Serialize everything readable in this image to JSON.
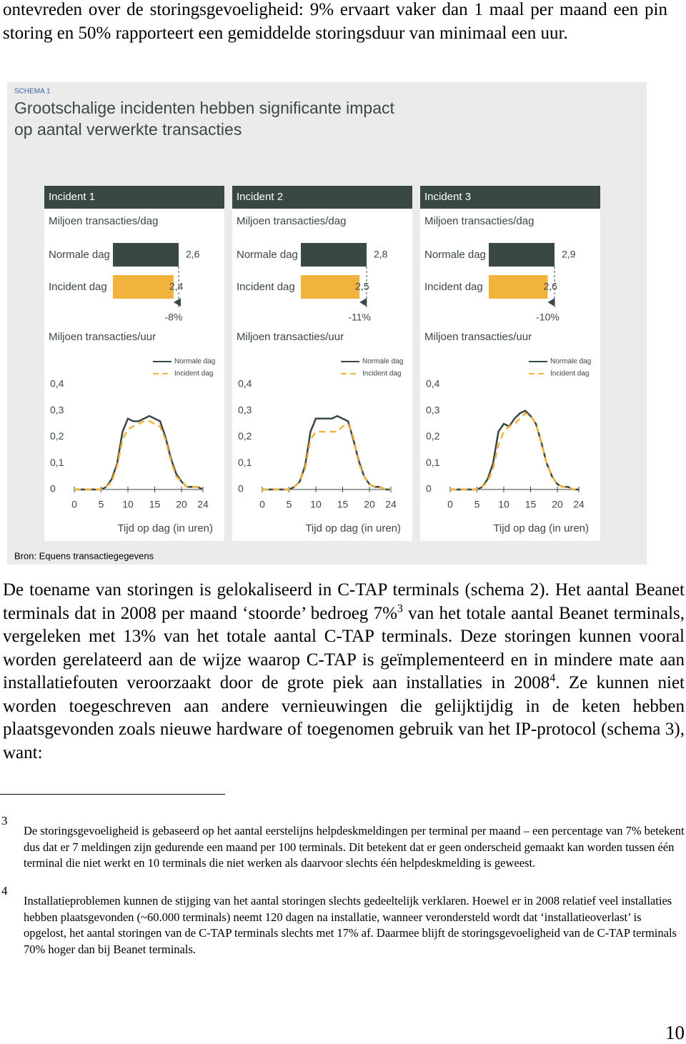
{
  "document": {
    "intro": "ontevreden over de storingsgevoeligheid: 9% ervaart vaker dan 1 maal per maand een pin storing en 50% rapporteert een gemiddelde storingsduur van minimaal een uur.",
    "schema": {
      "label": "SCHEMA 1",
      "title_lines": [
        "Grootschalige incidenten hebben significante impact",
        "op aantal verwerkte transacties"
      ],
      "source": "Bron: Equens transactiegegevens"
    },
    "body": [
      "De toename van storingen is gelokaliseerd in C-TAP terminals (schema 2). Het aantal Beanet terminals dat in 2008 per maand ‘stoorde’ bedroeg 7%",
      "3",
      " van het totale aantal Beanet terminals, vergeleken met 13% van het totale aantal C-TAP terminals. Deze storingen kunnen vooral worden gerelateerd aan de wijze waarop C-TAP is geïmplementeerd en in mindere mate aan installatiefouten veroorzaakt door de grote piek aan installaties in 2008",
      "4",
      ". Ze kunnen niet worden toegeschreven aan andere vernieuwingen die gelijktijdig in de keten hebben plaatsgevonden zoals nieuwe hardware of toegenomen gebruik van het IP-protocol (schema 3), want:"
    ],
    "footnotes": [
      {
        "number": "3",
        "text": "De storingsgevoeligheid is gebaseerd op het aantal eerstelijns helpdeskmeldingen per terminal per maand – een percentage van 7% betekent dus dat er 7 meldingen zijn gedurende een maand per 100 terminals. Dit betekent dat er geen onderscheid gemaakt kan worden tussen één terminal die niet werkt en 10 terminals die niet werken als daarvoor slechts één helpdeskmelding is geweest."
      },
      {
        "number": "4",
        "text": "Installatieproblemen kunnen de stijging van het aantal storingen slechts gedeeltelijk verklaren. Hoewel er in 2008 relatief veel installaties hebben plaatsgevonden (~60.000 terminals) neemt 120 dagen na installatie, wanneer verondersteld wordt dat ‘installatieoverlast’ is opgelost, het aantal storingen van de C-TAP terminals slechts met 17% af. Daarmee blijft de storingsgevoeligheid van de C-TAP terminals 70% hoger dan bij Beanet terminals."
      }
    ],
    "page_number": "10"
  },
  "chart_data": [
    {
      "type": "bar",
      "title": "Incident 1",
      "subtitle": "Miljoen transacties/dag",
      "categories": [
        "Normale dag",
        "Incident dag"
      ],
      "values": [
        2.6,
        2.4
      ],
      "value_labels": [
        "2,6",
        "2,4"
      ],
      "colors": [
        "#3a4845",
        "#f2b33d"
      ],
      "annotation": "-8%"
    },
    {
      "type": "bar",
      "title": "Incident 2",
      "subtitle": "Miljoen transacties/dag",
      "categories": [
        "Normale dag",
        "Incident dag"
      ],
      "values": [
        2.8,
        2.5
      ],
      "value_labels": [
        "2,8",
        "2,5"
      ],
      "colors": [
        "#3a4845",
        "#f2b33d"
      ],
      "annotation": "-11%"
    },
    {
      "type": "bar",
      "title": "Incident 3",
      "subtitle": "Miljoen transacties/dag",
      "categories": [
        "Normale dag",
        "Incident dag"
      ],
      "values": [
        2.9,
        2.6
      ],
      "value_labels": [
        "2,9",
        "2,6"
      ],
      "colors": [
        "#3a4845",
        "#f2b33d"
      ],
      "annotation": "-10%"
    },
    {
      "type": "line",
      "title": "Miljoen transacties/uur",
      "xlabel": "Tijd op dag (in uren)",
      "x": [
        0,
        1,
        2,
        3,
        4,
        5,
        6,
        7,
        8,
        9,
        10,
        11,
        12,
        13,
        14,
        15,
        16,
        17,
        18,
        19,
        20,
        21,
        22,
        23,
        24
      ],
      "xlim": [
        0,
        24
      ],
      "xticks": [
        0,
        5,
        10,
        15,
        20,
        24
      ],
      "ylim": [
        0,
        0.4
      ],
      "yticks": [
        0,
        {
          "value": 0.1,
          "label": "0,1"
        },
        {
          "value": 0.2,
          "label": "0,2"
        },
        {
          "value": 0.3,
          "label": "0,3"
        },
        {
          "value": 0.4,
          "label": "0,4"
        }
      ],
      "series": [
        {
          "name": "Normale dag",
          "color": "#3a4845",
          "values": [
            0,
            0,
            0,
            0,
            0,
            0,
            0.01,
            0.04,
            0.1,
            0.22,
            0.27,
            0.26,
            0.26,
            0.27,
            0.28,
            0.27,
            0.26,
            0.2,
            0.12,
            0.06,
            0.03,
            0.01,
            0.01,
            0.01,
            0
          ]
        },
        {
          "name": "Incident dag",
          "color": "#f2b33d",
          "values": [
            0,
            0,
            0,
            0,
            0,
            0,
            0.01,
            0.03,
            0.09,
            0.19,
            0.23,
            0.24,
            0.25,
            0.26,
            0.26,
            0.25,
            0.24,
            0.19,
            0.11,
            0.05,
            0.03,
            0.01,
            0.01,
            0.01,
            0
          ]
        }
      ]
    },
    {
      "type": "line",
      "title": "Miljoen transacties/uur",
      "xlabel": "Tijd op dag (in uren)",
      "x": [
        0,
        1,
        2,
        3,
        4,
        5,
        6,
        7,
        8,
        9,
        10,
        11,
        12,
        13,
        14,
        15,
        16,
        17,
        18,
        19,
        20,
        21,
        22,
        23,
        24
      ],
      "xlim": [
        0,
        24
      ],
      "xticks": [
        0,
        5,
        10,
        15,
        20,
        24
      ],
      "ylim": [
        0,
        0.4
      ],
      "yticks": [
        0,
        {
          "value": 0.1,
          "label": "0,1"
        },
        {
          "value": 0.2,
          "label": "0,2"
        },
        {
          "value": 0.3,
          "label": "0,3"
        },
        {
          "value": 0.4,
          "label": "0,4"
        }
      ],
      "series": [
        {
          "name": "Normale dag",
          "color": "#3a4845",
          "values": [
            0,
            0,
            0,
            0,
            0,
            0,
            0.01,
            0.03,
            0.09,
            0.22,
            0.27,
            0.27,
            0.27,
            0.27,
            0.28,
            0.27,
            0.26,
            0.19,
            0.11,
            0.05,
            0.02,
            0.01,
            0.01,
            0,
            0
          ]
        },
        {
          "name": "Incident dag",
          "color": "#f2b33d",
          "values": [
            0,
            0,
            0,
            0,
            0,
            0,
            0.01,
            0.03,
            0.08,
            0.19,
            0.22,
            0.22,
            0.22,
            0.22,
            0.22,
            0.24,
            0.25,
            0.2,
            0.1,
            0.05,
            0.02,
            0.01,
            0.01,
            0,
            0
          ]
        }
      ]
    },
    {
      "type": "line",
      "title": "Miljoen transacties/uur",
      "xlabel": "Tijd op dag (in uren)",
      "x": [
        0,
        1,
        2,
        3,
        4,
        5,
        6,
        7,
        8,
        9,
        10,
        11,
        12,
        13,
        14,
        15,
        16,
        17,
        18,
        19,
        20,
        21,
        22,
        23,
        24
      ],
      "xlim": [
        0,
        24
      ],
      "xticks": [
        0,
        5,
        10,
        15,
        20,
        24
      ],
      "ylim": [
        0,
        0.4
      ],
      "yticks": [
        0,
        {
          "value": 0.1,
          "label": "0,1"
        },
        {
          "value": 0.2,
          "label": "0,2"
        },
        {
          "value": 0.3,
          "label": "0,3"
        },
        {
          "value": 0.4,
          "label": "0,4"
        }
      ],
      "series": [
        {
          "name": "Normale dag",
          "color": "#3a4845",
          "values": [
            0,
            0,
            0,
            0,
            0,
            0,
            0.01,
            0.04,
            0.1,
            0.22,
            0.25,
            0.24,
            0.27,
            0.29,
            0.3,
            0.28,
            0.25,
            0.18,
            0.1,
            0.05,
            0.02,
            0.01,
            0.01,
            0,
            0
          ]
        },
        {
          "name": "Incident dag",
          "color": "#f2b33d",
          "values": [
            0,
            0,
            0,
            0,
            0,
            0,
            0.01,
            0.03,
            0.08,
            0.17,
            0.22,
            0.24,
            0.25,
            0.27,
            0.29,
            0.28,
            0.25,
            0.18,
            0.1,
            0.05,
            0.02,
            0.01,
            0.01,
            0,
            0
          ]
        }
      ]
    }
  ]
}
